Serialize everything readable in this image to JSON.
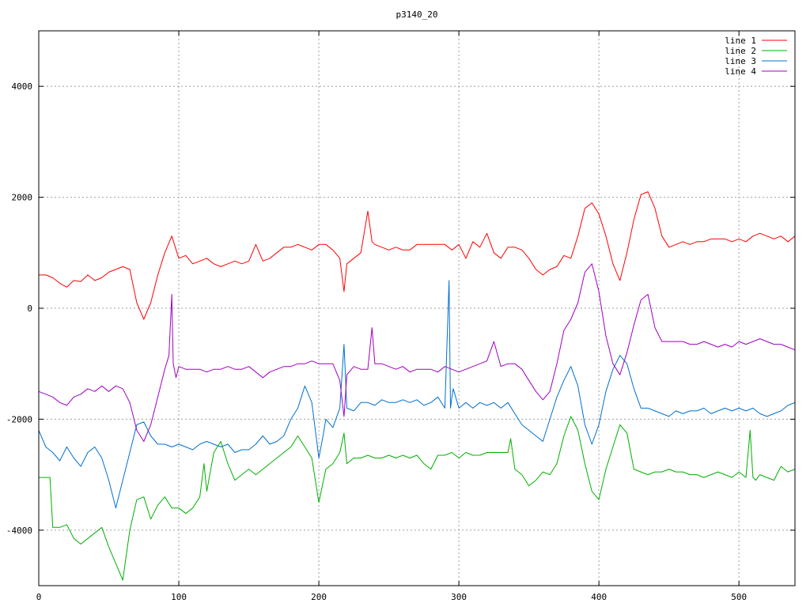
{
  "chart_data": {
    "type": "line",
    "title": "p3140_20",
    "xlabel": "",
    "ylabel": "",
    "xlim": [
      0,
      540
    ],
    "ylim": [
      -5000,
      5000
    ],
    "x_ticks": [
      0,
      100,
      200,
      300,
      400,
      500
    ],
    "y_ticks": [
      -4000,
      -2000,
      0,
      2000,
      4000
    ],
    "grid": true,
    "legend_position": "top-right",
    "series": [
      {
        "name": "line 1",
        "color": "#ff0000",
        "x": [
          0,
          5,
          10,
          15,
          20,
          25,
          30,
          35,
          40,
          45,
          50,
          55,
          60,
          65,
          70,
          75,
          80,
          85,
          90,
          95,
          100,
          105,
          110,
          115,
          120,
          125,
          130,
          135,
          140,
          145,
          150,
          155,
          160,
          165,
          170,
          175,
          180,
          185,
          190,
          195,
          200,
          205,
          210,
          215,
          218,
          220,
          225,
          230,
          235,
          238,
          240,
          245,
          250,
          255,
          260,
          265,
          270,
          275,
          280,
          285,
          290,
          295,
          300,
          305,
          310,
          315,
          320,
          325,
          330,
          335,
          340,
          345,
          350,
          355,
          360,
          365,
          370,
          375,
          380,
          385,
          390,
          395,
          400,
          405,
          410,
          415,
          420,
          425,
          430,
          435,
          440,
          445,
          450,
          455,
          460,
          465,
          470,
          475,
          480,
          485,
          490,
          495,
          500,
          505,
          510,
          515,
          520,
          525,
          530,
          535,
          540
        ],
        "values": [
          600,
          600,
          550,
          450,
          380,
          500,
          480,
          600,
          500,
          550,
          650,
          700,
          750,
          700,
          100,
          -200,
          100,
          600,
          1000,
          1300,
          900,
          950,
          800,
          850,
          900,
          800,
          750,
          800,
          850,
          800,
          850,
          1150,
          850,
          900,
          1000,
          1100,
          1100,
          1150,
          1100,
          1050,
          1150,
          1150,
          1050,
          900,
          300,
          800,
          900,
          1000,
          1750,
          1200,
          1150,
          1100,
          1050,
          1100,
          1050,
          1050,
          1150,
          1150,
          1150,
          1150,
          1150,
          1050,
          1150,
          900,
          1200,
          1100,
          1350,
          1000,
          900,
          1100,
          1100,
          1050,
          900,
          700,
          600,
          700,
          750,
          950,
          900,
          1300,
          1800,
          1900,
          1700,
          1300,
          800,
          500,
          1000,
          1600,
          2050,
          2100,
          1800,
          1300,
          1100,
          1150,
          1200,
          1150,
          1200,
          1200,
          1250,
          1250,
          1250,
          1200,
          1250,
          1200,
          1300,
          1350,
          1300,
          1250,
          1300,
          1200,
          1300
        ]
      },
      {
        "name": "line 2",
        "color": "#00b000",
        "x": [
          0,
          5,
          8,
          10,
          15,
          20,
          25,
          30,
          35,
          40,
          45,
          50,
          55,
          60,
          65,
          70,
          75,
          80,
          85,
          90,
          95,
          100,
          105,
          110,
          115,
          118,
          120,
          125,
          130,
          135,
          140,
          145,
          150,
          155,
          160,
          165,
          170,
          175,
          180,
          185,
          190,
          195,
          200,
          205,
          210,
          215,
          218,
          220,
          225,
          230,
          235,
          240,
          245,
          250,
          255,
          260,
          265,
          270,
          275,
          280,
          285,
          290,
          295,
          300,
          305,
          310,
          315,
          320,
          325,
          330,
          335,
          337,
          340,
          345,
          350,
          355,
          360,
          365,
          370,
          375,
          380,
          385,
          390,
          395,
          400,
          405,
          410,
          415,
          420,
          425,
          430,
          435,
          440,
          445,
          450,
          455,
          460,
          465,
          470,
          475,
          480,
          485,
          490,
          495,
          500,
          505,
          508,
          510,
          512,
          515,
          520,
          525,
          530,
          535,
          540
        ],
        "values": [
          -3050,
          -3050,
          -3050,
          -3950,
          -3950,
          -3900,
          -4150,
          -4250,
          -4150,
          -4050,
          -3950,
          -4300,
          -4600,
          -4900,
          -4000,
          -3450,
          -3400,
          -3800,
          -3550,
          -3400,
          -3600,
          -3600,
          -3700,
          -3600,
          -3400,
          -2800,
          -3300,
          -2600,
          -2400,
          -2800,
          -3100,
          -3000,
          -2900,
          -3000,
          -2900,
          -2800,
          -2700,
          -2600,
          -2500,
          -2300,
          -2500,
          -2700,
          -3500,
          -2900,
          -2800,
          -2600,
          -2250,
          -2800,
          -2700,
          -2700,
          -2650,
          -2700,
          -2700,
          -2650,
          -2700,
          -2650,
          -2700,
          -2650,
          -2800,
          -2900,
          -2650,
          -2650,
          -2600,
          -2700,
          -2600,
          -2650,
          -2650,
          -2600,
          -2600,
          -2600,
          -2600,
          -2350,
          -2900,
          -3000,
          -3200,
          -3100,
          -2950,
          -3000,
          -2800,
          -2300,
          -1950,
          -2200,
          -2800,
          -3300,
          -3450,
          -2900,
          -2500,
          -2100,
          -2250,
          -2900,
          -2950,
          -3000,
          -2950,
          -2950,
          -2900,
          -2950,
          -2950,
          -3000,
          -3000,
          -3050,
          -3000,
          -2950,
          -3000,
          -3050,
          -2950,
          -3050,
          -2200,
          -3050,
          -3100,
          -3000,
          -3050,
          -3100,
          -2850,
          -2950,
          -2900
        ]
      },
      {
        "name": "line 3",
        "color": "#0070d0",
        "x": [
          0,
          5,
          10,
          15,
          20,
          25,
          30,
          35,
          40,
          45,
          50,
          55,
          60,
          65,
          70,
          75,
          80,
          85,
          90,
          95,
          100,
          105,
          110,
          115,
          120,
          125,
          130,
          135,
          140,
          145,
          150,
          155,
          160,
          165,
          170,
          175,
          180,
          185,
          190,
          195,
          200,
          203,
          205,
          210,
          215,
          218,
          220,
          225,
          230,
          235,
          240,
          245,
          250,
          255,
          260,
          265,
          270,
          275,
          280,
          285,
          290,
          293,
          294,
          295,
          296,
          300,
          305,
          310,
          315,
          320,
          325,
          330,
          335,
          340,
          345,
          350,
          355,
          360,
          365,
          370,
          375,
          380,
          385,
          390,
          395,
          400,
          405,
          410,
          415,
          420,
          425,
          430,
          435,
          440,
          445,
          450,
          455,
          460,
          465,
          470,
          475,
          480,
          485,
          490,
          495,
          500,
          505,
          510,
          515,
          520,
          525,
          530,
          535,
          540
        ],
        "values": [
          -2200,
          -2500,
          -2600,
          -2750,
          -2500,
          -2700,
          -2850,
          -2600,
          -2500,
          -2700,
          -3100,
          -3600,
          -3100,
          -2600,
          -2100,
          -2050,
          -2300,
          -2450,
          -2450,
          -2500,
          -2450,
          -2500,
          -2550,
          -2450,
          -2400,
          -2450,
          -2500,
          -2450,
          -2600,
          -2550,
          -2550,
          -2450,
          -2300,
          -2450,
          -2400,
          -2300,
          -2000,
          -1800,
          -1400,
          -1700,
          -2700,
          -2300,
          -2000,
          -2150,
          -1800,
          -650,
          -1800,
          -1850,
          -1700,
          -1700,
          -1750,
          -1650,
          -1700,
          -1700,
          -1650,
          -1700,
          -1650,
          -1750,
          -1700,
          -1600,
          -1800,
          500,
          -1800,
          -1600,
          -1450,
          -1800,
          -1700,
          -1800,
          -1700,
          -1750,
          -1700,
          -1800,
          -1700,
          -1900,
          -2100,
          -2200,
          -2300,
          -2400,
          -2000,
          -1600,
          -1300,
          -1050,
          -1400,
          -2100,
          -2450,
          -2100,
          -1500,
          -1100,
          -850,
          -1000,
          -1450,
          -1800,
          -1800,
          -1850,
          -1900,
          -1950,
          -1850,
          -1900,
          -1850,
          -1850,
          -1800,
          -1900,
          -1850,
          -1800,
          -1850,
          -1800,
          -1850,
          -1800,
          -1900,
          -1950,
          -1900,
          -1850,
          -1750,
          -1700
        ]
      },
      {
        "name": "line 4",
        "color": "#a000c0",
        "x": [
          0,
          5,
          10,
          15,
          20,
          25,
          30,
          35,
          40,
          45,
          50,
          55,
          60,
          65,
          70,
          75,
          80,
          85,
          90,
          93,
          95,
          96,
          98,
          100,
          105,
          110,
          115,
          120,
          125,
          130,
          135,
          140,
          145,
          150,
          155,
          160,
          165,
          170,
          175,
          180,
          185,
          190,
          195,
          200,
          205,
          210,
          215,
          218,
          220,
          225,
          230,
          235,
          238,
          240,
          245,
          250,
          255,
          260,
          265,
          270,
          275,
          280,
          285,
          290,
          295,
          300,
          305,
          310,
          315,
          320,
          325,
          330,
          335,
          340,
          345,
          350,
          355,
          360,
          365,
          370,
          375,
          380,
          385,
          390,
          395,
          400,
          405,
          410,
          415,
          420,
          425,
          430,
          435,
          440,
          445,
          450,
          455,
          460,
          465,
          470,
          475,
          480,
          485,
          490,
          495,
          500,
          505,
          510,
          515,
          520,
          525,
          530,
          535,
          540
        ],
        "values": [
          -1500,
          -1550,
          -1600,
          -1700,
          -1750,
          -1600,
          -1550,
          -1450,
          -1500,
          -1400,
          -1500,
          -1400,
          -1450,
          -1700,
          -2200,
          -2400,
          -2100,
          -1600,
          -1100,
          -850,
          250,
          -1000,
          -1250,
          -1050,
          -1100,
          -1100,
          -1100,
          -1150,
          -1100,
          -1100,
          -1050,
          -1100,
          -1100,
          -1050,
          -1150,
          -1250,
          -1150,
          -1100,
          -1050,
          -1050,
          -1000,
          -1000,
          -950,
          -1000,
          -1000,
          -1000,
          -1300,
          -1950,
          -1200,
          -1050,
          -1100,
          -1100,
          -350,
          -1000,
          -1000,
          -1050,
          -1100,
          -1050,
          -1150,
          -1100,
          -1100,
          -1100,
          -1150,
          -1050,
          -1100,
          -1150,
          -1100,
          -1050,
          -1000,
          -950,
          -600,
          -1050,
          -1000,
          -1000,
          -1100,
          -1300,
          -1500,
          -1650,
          -1500,
          -1000,
          -400,
          -200,
          100,
          650,
          800,
          300,
          -500,
          -1000,
          -1200,
          -800,
          -300,
          150,
          250,
          -350,
          -600,
          -600,
          -600,
          -600,
          -650,
          -650,
          -600,
          -650,
          -700,
          -650,
          -700,
          -600,
          -650,
          -600,
          -550,
          -600,
          -650,
          -650,
          -700,
          -750
        ]
      }
    ]
  }
}
